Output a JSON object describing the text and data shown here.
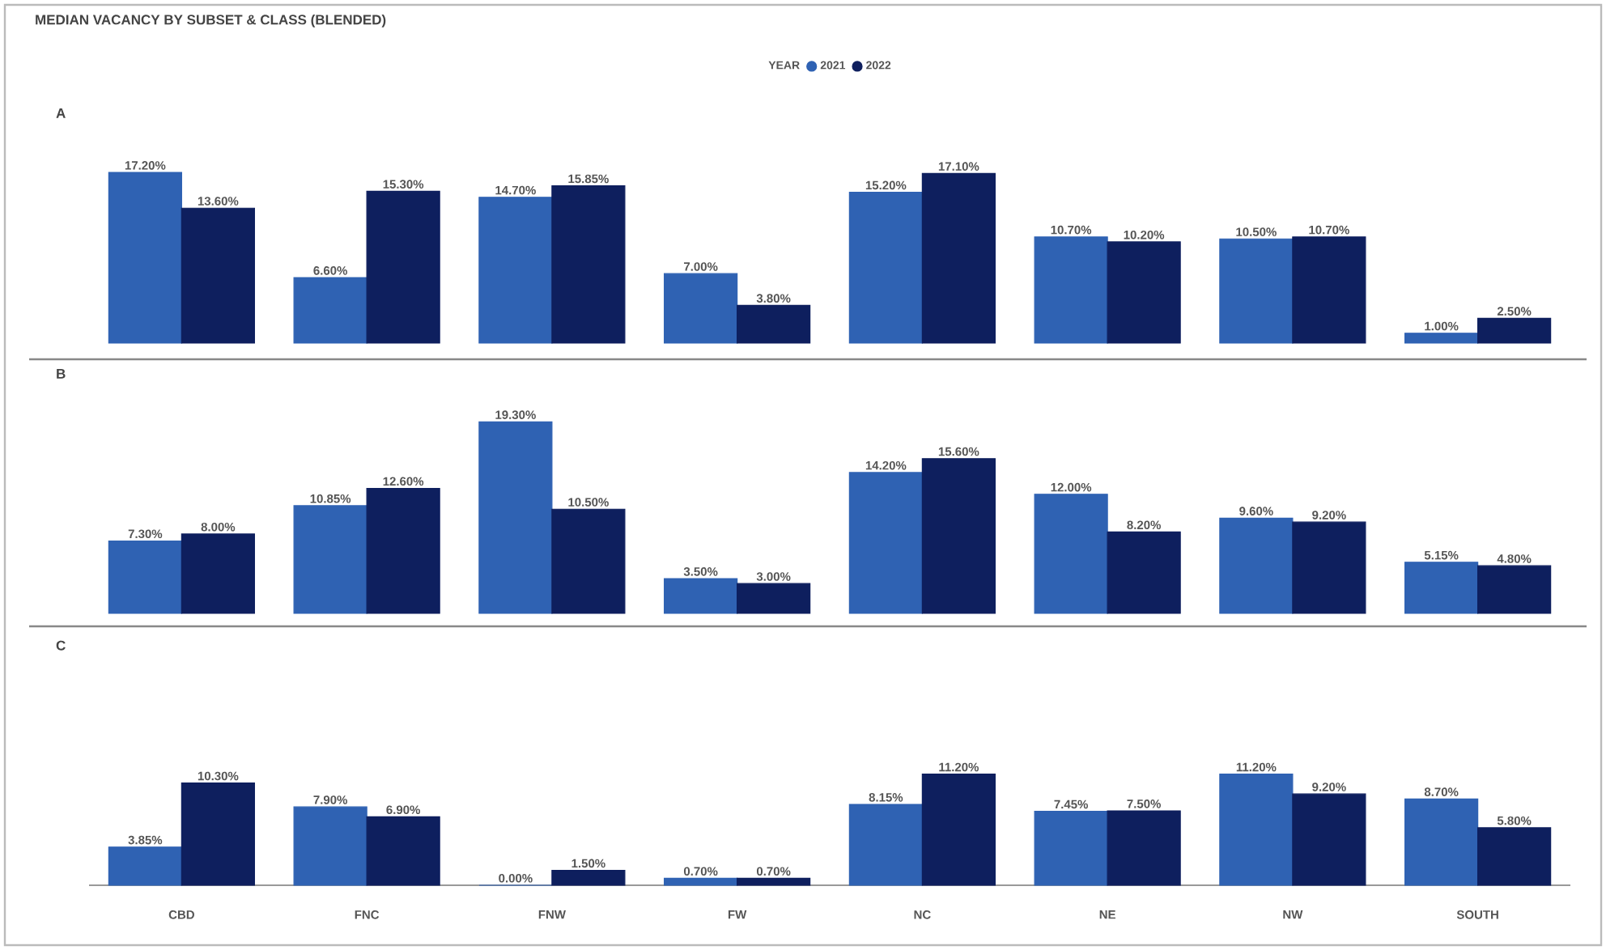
{
  "chart_data": [
    {
      "type": "bar",
      "title": "MEDIAN VACANCY BY SUBSET & CLASS (BLENDED)",
      "subtitle": "A",
      "legend_title": "YEAR",
      "legend": "top",
      "tick_labels": false,
      "categories": [
        null,
        null,
        null,
        null,
        null,
        null,
        null,
        null
      ],
      "series": [
        {
          "name": "2021",
          "color": "#2f62b3",
          "values": [
            17.2,
            6.6,
            14.7,
            7.0,
            15.2,
            10.7,
            10.5,
            1.0
          ],
          "value_labels": [
            "17.20%",
            "6.60%",
            "14.70%",
            "7.00%",
            "15.20%",
            "10.70%",
            "10.50%",
            "1.00%"
          ]
        },
        {
          "name": "2022",
          "color": "#0e1f5e",
          "values": [
            13.6,
            15.3,
            15.85,
            3.8,
            17.1,
            10.2,
            10.7,
            2.5
          ],
          "value_labels": [
            "13.60%",
            "15.30%",
            "15.85%",
            "3.80%",
            "17.10%",
            "10.20%",
            "10.70%",
            "2.50%"
          ]
        }
      ]
    },
    {
      "type": "bar",
      "title": "B",
      "tick_labels": false,
      "categories": [
        null,
        null,
        null,
        null,
        null,
        null,
        null,
        null
      ],
      "series": [
        {
          "color": "#2f62b3",
          "values": [
            7.3,
            10.85,
            19.3,
            3.5,
            14.2,
            12.0,
            9.6,
            5.15
          ],
          "value_labels": [
            "7.30%",
            "10.85%",
            "19.30%",
            "3.50%",
            "14.20%",
            "12.00%",
            "9.60%",
            "5.15%"
          ]
        },
        {
          "color": "#0e1f5e",
          "values": [
            8.0,
            12.6,
            10.5,
            3.0,
            15.6,
            8.2,
            9.2,
            4.8
          ],
          "value_labels": [
            "8.00%",
            "12.60%",
            "10.50%",
            "3.00%",
            "15.60%",
            "8.20%",
            "9.20%",
            "4.80%"
          ]
        }
      ]
    },
    {
      "type": "bar",
      "title": "C",
      "categories": [
        "CBD",
        "FNC",
        "FNW",
        "FW",
        "NC",
        "NE",
        "NW",
        "SOUTH"
      ],
      "series": [
        {
          "color": "#2f62b3",
          "values": [
            3.85,
            7.9,
            0.0,
            0.7,
            8.15,
            7.45,
            11.2,
            8.7
          ],
          "value_labels": [
            "3.85%",
            "7.90%",
            "0.00%",
            "0.70%",
            "8.15%",
            "7.45%",
            "11.20%",
            "8.70%"
          ]
        },
        {
          "color": "#0e1f5e",
          "values": [
            10.3,
            6.9,
            1.5,
            0.7,
            11.2,
            7.5,
            9.2,
            5.8
          ],
          "value_labels": [
            "10.30%",
            "6.90%",
            "1.50%",
            "0.70%",
            "11.20%",
            "7.50%",
            "9.20%",
            "5.80%"
          ]
        }
      ]
    }
  ]
}
